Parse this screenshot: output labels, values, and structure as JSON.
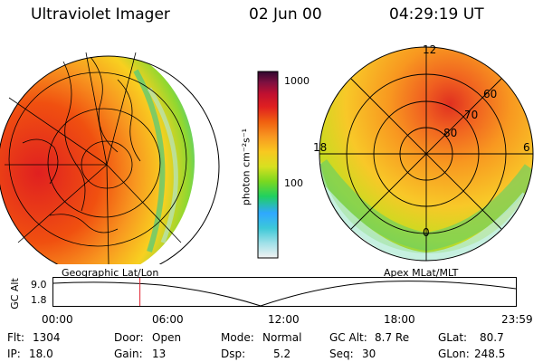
{
  "header": {
    "instrument": "Ultraviolet Imager",
    "date": "02 Jun 00",
    "time": "04:29:19 UT"
  },
  "colorbar": {
    "unit_label": "photon cm⁻²s⁻¹",
    "tick_high": "1000",
    "tick_mid": "100",
    "gradient_colors": [
      "#f2f2f2",
      "#9fe0e8",
      "#3cc8d8",
      "#2fa8ff",
      "#20d060",
      "#7ad820",
      "#d8e020",
      "#f8c820",
      "#f89820",
      "#f06010",
      "#e02020",
      "#c01030",
      "#801040",
      "#300830"
    ]
  },
  "left_image": {
    "caption": "Geographic Lat/Lon"
  },
  "right_image": {
    "caption": "Apex MLat/MLT",
    "mlt_labels": {
      "top": "12",
      "left": "18",
      "right": "6",
      "bottom": "0"
    },
    "lat_labels": [
      "60",
      "70",
      "80"
    ]
  },
  "altitude_plot": {
    "ylabel": "GC Alt",
    "ymax_label": "9.0",
    "ymin_label": "1.8",
    "time_ticks": [
      "00:00",
      "06:00",
      "12:00",
      "18:00",
      "23:59"
    ],
    "current_time_marker_hours": 4.49
  },
  "info": {
    "flt_label": "Flt:",
    "flt_value": "1304",
    "ip_label": "IP:",
    "ip_value": "18.0",
    "door_label": "Door:",
    "door_value": "Open",
    "gain_label": "Gain:",
    "gain_value": "13",
    "mode_label": "Mode:",
    "mode_value": "Normal",
    "dsp_label": "Dsp:",
    "dsp_value": "5.2",
    "gcalt_label": "GC Alt:",
    "gcalt_value": "8.7 Re",
    "seq_label": "Seq:",
    "seq_value": "30",
    "glat_label": "GLat:",
    "glat_value": "80.7",
    "glon_label": "GLon:",
    "glon_value": "248.5"
  }
}
